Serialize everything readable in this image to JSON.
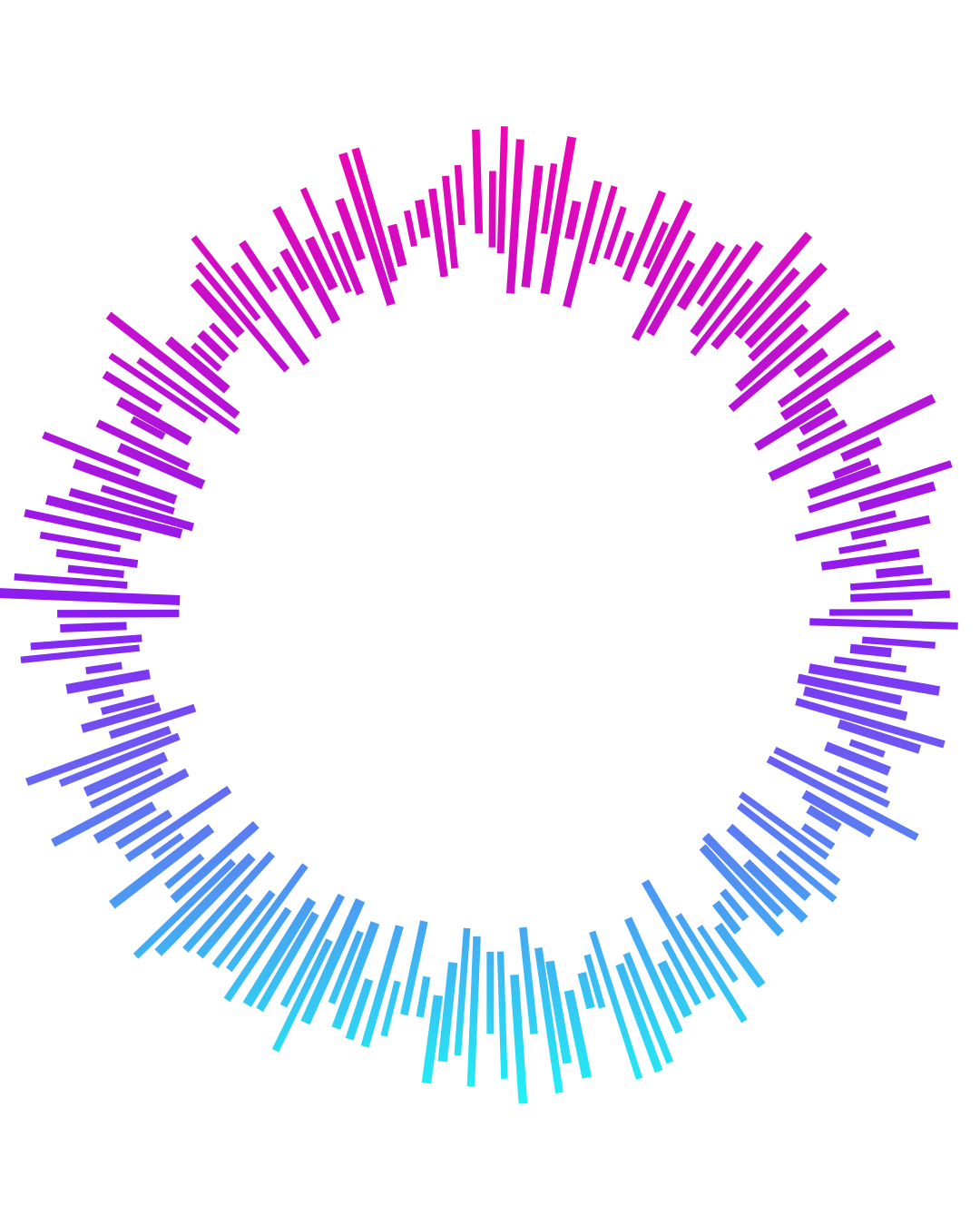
{
  "graphic": {
    "kind": "radial sound-wave burst",
    "bar_count": 180,
    "colors": {
      "top": "#ef06b0",
      "middle": "#8a1df2",
      "bottom": "#1ef5f3",
      "background": "#ffffff"
    }
  }
}
